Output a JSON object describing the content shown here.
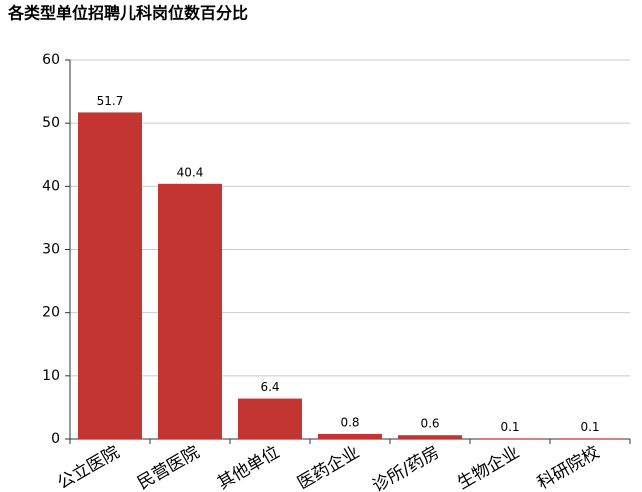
{
  "chart_data": {
    "type": "bar",
    "title": "各类型单位招聘儿科岗位数百分比",
    "categories": [
      "公立医院",
      "民营医院",
      "其他单位",
      "医药企业",
      "诊所/药房",
      "生物企业",
      "科研院校"
    ],
    "values": [
      51.7,
      40.4,
      6.4,
      0.8,
      0.6,
      0.1,
      0.1
    ],
    "color": "#c23531",
    "ylim": [
      0,
      60
    ],
    "yticks": [
      0,
      10,
      20,
      30,
      40,
      50,
      60
    ],
    "grid": true
  }
}
